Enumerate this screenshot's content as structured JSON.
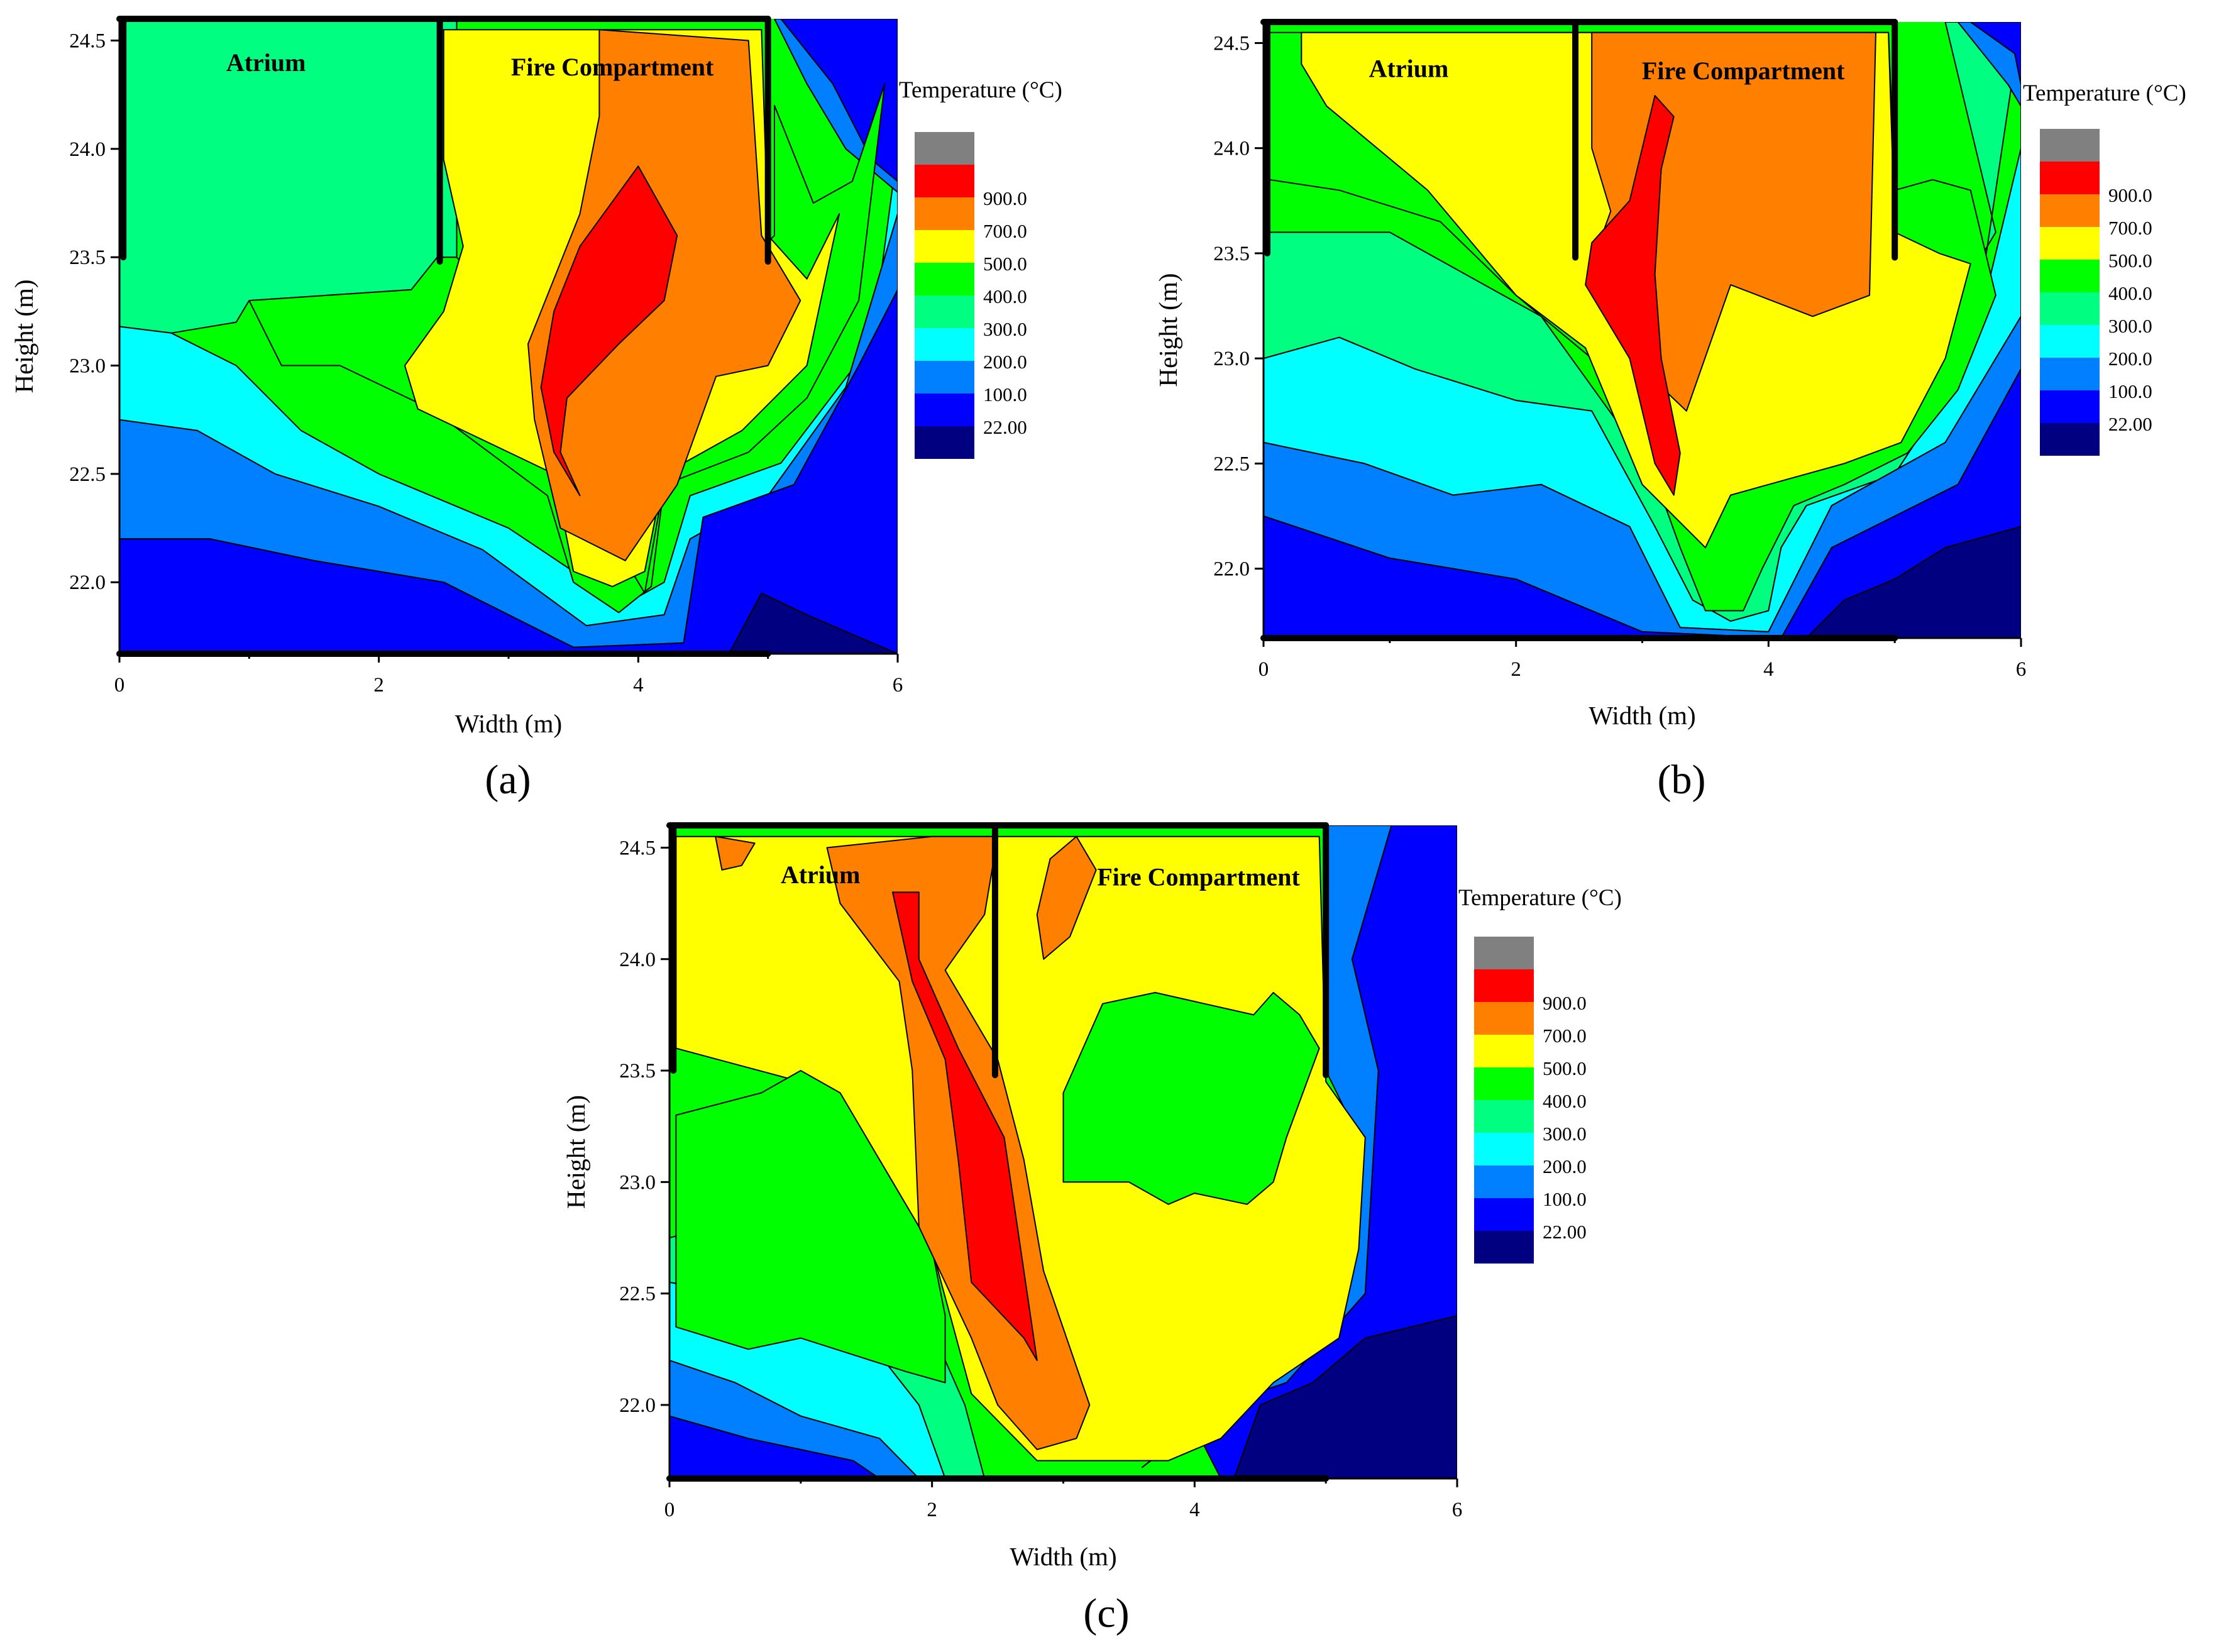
{
  "chart_data": [
    {
      "type": "heatmap",
      "panel_label": "(a)",
      "xlabel": "Width (m)",
      "ylabel": "Height (m)",
      "xlim": [
        0,
        6
      ],
      "ylim": [
        21.67,
        24.6
      ],
      "x_ticks": [
        0,
        2,
        4,
        6
      ],
      "y_ticks": [
        22.0,
        22.5,
        23.0,
        23.5,
        24.0,
        24.5
      ],
      "x_tick_labels": [
        "0",
        "2",
        "4",
        "6"
      ],
      "y_tick_labels": [
        "22.0",
        "22.5",
        "23.0",
        "23.5",
        "24.0",
        "24.5"
      ],
      "region_labels": [
        {
          "text": "Atrium",
          "x": 1.13,
          "y": 24.4
        },
        {
          "text": "Fire Compartment",
          "x": 3.8,
          "y": 24.38
        }
      ],
      "walls": [
        {
          "x": 0.03,
          "y_from": 23.5,
          "y_to": 24.6
        },
        {
          "x": 2.47,
          "y_from": 23.48,
          "y_to": 24.6
        },
        {
          "x": 5.0,
          "y_from": 23.48,
          "y_to": 24.6
        }
      ],
      "legend": {
        "title": "Temperature (°C)",
        "placement": "right"
      },
      "contours": [
        {
          "level": "green",
          "points": [
            [
              1.0,
              23.3
            ],
            [
              2.25,
              23.35
            ],
            [
              2.45,
              23.5
            ],
            [
              2.6,
              23.5
            ],
            [
              3.3,
              23.05
            ],
            [
              3.65,
              22.35
            ],
            [
              4.05,
              21.95
            ],
            [
              4.3,
              22.8
            ],
            [
              4.7,
              23.4
            ],
            [
              5.05,
              23.6
            ],
            [
              5.05,
              24.2
            ],
            [
              5.35,
              23.75
            ],
            [
              5.65,
              23.85
            ],
            [
              5.9,
              24.3
            ],
            [
              5.7,
              23.3
            ],
            [
              5.3,
              22.85
            ],
            [
              4.85,
              22.6
            ],
            [
              4.2,
              22.45
            ],
            [
              4.1,
              21.98
            ],
            [
              3.85,
              21.86
            ],
            [
              3.5,
              22.0
            ],
            [
              3.3,
              22.4
            ],
            [
              2.4,
              22.8
            ],
            [
              1.7,
              23.0
            ],
            [
              1.25,
              23.0
            ]
          ]
        },
        {
          "level": "yellow",
          "points": [
            [
              2.6,
              24.55
            ],
            [
              4.95,
              24.55
            ],
            [
              5.0,
              23.6
            ],
            [
              5.3,
              23.4
            ],
            [
              5.55,
              23.7
            ],
            [
              5.3,
              23.0
            ],
            [
              4.8,
              22.7
            ],
            [
              4.2,
              22.5
            ],
            [
              4.05,
              22.05
            ],
            [
              3.8,
              21.98
            ],
            [
              3.5,
              22.05
            ],
            [
              3.35,
              22.5
            ],
            [
              3.0,
              22.6
            ],
            [
              2.3,
              22.8
            ],
            [
              2.2,
              23.0
            ],
            [
              2.5,
              23.25
            ],
            [
              2.65,
              23.55
            ],
            [
              2.5,
              23.95
            ],
            [
              2.5,
              24.55
            ]
          ]
        },
        {
          "level": "orange",
          "points": [
            [
              3.7,
              24.55
            ],
            [
              4.85,
              24.5
            ],
            [
              4.95,
              23.6
            ],
            [
              5.25,
              23.3
            ],
            [
              5.0,
              23.0
            ],
            [
              4.6,
              22.95
            ],
            [
              4.3,
              22.45
            ],
            [
              3.9,
              22.1
            ],
            [
              3.4,
              22.25
            ],
            [
              3.2,
              22.75
            ],
            [
              3.15,
              23.1
            ],
            [
              3.55,
              23.7
            ],
            [
              3.7,
              24.15
            ]
          ]
        },
        {
          "level": "red",
          "points": [
            [
              4.0,
              23.92
            ],
            [
              4.3,
              23.6
            ],
            [
              4.2,
              23.3
            ],
            [
              3.85,
              23.1
            ],
            [
              3.45,
              22.85
            ],
            [
              3.4,
              22.6
            ],
            [
              3.55,
              22.4
            ],
            [
              3.35,
              22.6
            ],
            [
              3.25,
              22.9
            ],
            [
              3.35,
              23.25
            ],
            [
              3.55,
              23.55
            ]
          ]
        }
      ]
    },
    {
      "type": "heatmap",
      "panel_label": "(b)",
      "xlabel": "Width (m)",
      "ylabel": "Height (m)",
      "xlim": [
        0,
        6
      ],
      "ylim": [
        21.67,
        24.6
      ],
      "x_ticks": [
        0,
        2,
        4,
        6
      ],
      "y_ticks": [
        22.0,
        22.5,
        23.0,
        23.5,
        24.0,
        24.5
      ],
      "x_tick_labels": [
        "0",
        "2",
        "4",
        "6"
      ],
      "y_tick_labels": [
        "22.0",
        "22.5",
        "23.0",
        "23.5",
        "24.0",
        "24.5"
      ],
      "region_labels": [
        {
          "text": "Atrium",
          "x": 1.15,
          "y": 24.38
        },
        {
          "text": "Fire Compartment",
          "x": 3.8,
          "y": 24.37
        }
      ],
      "walls": [
        {
          "x": 0.03,
          "y_from": 23.5,
          "y_to": 24.6
        },
        {
          "x": 2.47,
          "y_from": 23.48,
          "y_to": 24.6
        },
        {
          "x": 5.0,
          "y_from": 23.48,
          "y_to": 24.6
        }
      ],
      "legend": {
        "title": "Temperature (°C)",
        "placement": "right"
      },
      "contours": [
        {
          "level": "green",
          "points": [
            [
              0.05,
              24.55
            ],
            [
              4.95,
              24.55
            ],
            [
              5.0,
              23.8
            ],
            [
              5.3,
              23.85
            ],
            [
              5.6,
              23.8
            ],
            [
              5.8,
              23.3
            ],
            [
              5.5,
              22.85
            ],
            [
              5.1,
              22.55
            ],
            [
              4.6,
              22.4
            ],
            [
              4.2,
              22.3
            ],
            [
              3.95,
              22.0
            ],
            [
              3.8,
              21.8
            ],
            [
              3.5,
              21.8
            ],
            [
              3.3,
              22.1
            ],
            [
              3.0,
              22.6
            ],
            [
              2.6,
              23.0
            ],
            [
              2.0,
              23.3
            ],
            [
              1.4,
              23.65
            ],
            [
              0.6,
              23.8
            ],
            [
              0.05,
              23.85
            ]
          ]
        },
        {
          "level": "yellow",
          "points": [
            [
              0.3,
              24.55
            ],
            [
              4.95,
              24.55
            ],
            [
              5.0,
              23.6
            ],
            [
              5.35,
              23.5
            ],
            [
              5.6,
              23.45
            ],
            [
              5.4,
              23.0
            ],
            [
              5.05,
              22.6
            ],
            [
              4.6,
              22.5
            ],
            [
              4.0,
              22.4
            ],
            [
              3.7,
              22.35
            ],
            [
              3.5,
              22.1
            ],
            [
              3.0,
              22.4
            ],
            [
              2.55,
              23.05
            ],
            [
              2.0,
              23.3
            ],
            [
              1.3,
              23.8
            ],
            [
              0.5,
              24.2
            ],
            [
              0.3,
              24.4
            ]
          ]
        },
        {
          "level": "orange",
          "points": [
            [
              2.6,
              24.55
            ],
            [
              4.85,
              24.55
            ],
            [
              4.8,
              23.3
            ],
            [
              4.35,
              23.2
            ],
            [
              3.7,
              23.35
            ],
            [
              3.35,
              22.75
            ],
            [
              3.0,
              22.95
            ],
            [
              2.75,
              23.35
            ],
            [
              2.6,
              23.45
            ],
            [
              2.75,
              23.7
            ],
            [
              2.6,
              24.0
            ]
          ]
        },
        {
          "level": "red",
          "points": [
            [
              3.1,
              24.25
            ],
            [
              3.25,
              24.15
            ],
            [
              3.15,
              23.9
            ],
            [
              3.1,
              23.4
            ],
            [
              3.15,
              23.0
            ],
            [
              3.3,
              22.55
            ],
            [
              3.25,
              22.35
            ],
            [
              3.1,
              22.5
            ],
            [
              2.9,
              23.0
            ],
            [
              2.55,
              23.35
            ],
            [
              2.6,
              23.55
            ],
            [
              2.9,
              23.75
            ]
          ]
        }
      ]
    },
    {
      "type": "heatmap",
      "panel_label": "(c)",
      "xlabel": "Width (m)",
      "ylabel": "Height (m)",
      "xlim": [
        0,
        6
      ],
      "ylim": [
        21.67,
        24.6
      ],
      "x_ticks": [
        0,
        2,
        4,
        6
      ],
      "y_ticks": [
        22.0,
        22.5,
        23.0,
        23.5,
        24.0,
        24.5
      ],
      "x_tick_labels": [
        "0",
        "2",
        "4",
        "6"
      ],
      "y_tick_labels": [
        "22.0",
        "22.5",
        "23.0",
        "23.5",
        "24.0",
        "24.5"
      ],
      "region_labels": [
        {
          "text": "Atrium",
          "x": 1.15,
          "y": 24.38
        },
        {
          "text": "Fire Compartment",
          "x": 4.03,
          "y": 24.37
        }
      ],
      "walls": [
        {
          "x": 0.03,
          "y_from": 23.5,
          "y_to": 24.6
        },
        {
          "x": 2.48,
          "y_from": 23.48,
          "y_to": 24.6
        },
        {
          "x": 5.0,
          "y_from": 23.48,
          "y_to": 24.6
        }
      ],
      "legend": {
        "title": "Temperature (°C)",
        "placement": "right"
      },
      "contours": [
        {
          "level": "yellow",
          "points": [
            [
              0.05,
              24.55
            ],
            [
              4.95,
              24.55
            ],
            [
              5.0,
              23.45
            ],
            [
              5.3,
              23.2
            ],
            [
              5.25,
              22.7
            ],
            [
              5.1,
              22.3
            ],
            [
              4.6,
              22.1
            ],
            [
              4.2,
              21.85
            ],
            [
              3.8,
              21.75
            ],
            [
              3.2,
              21.75
            ],
            [
              2.8,
              21.75
            ],
            [
              2.55,
              21.9
            ],
            [
              2.3,
              22.05
            ],
            [
              2.0,
              22.7
            ],
            [
              1.6,
              23.1
            ],
            [
              1.0,
              23.45
            ],
            [
              0.05,
              23.6
            ]
          ]
        },
        {
          "level": "green",
          "points": [
            [
              3.0,
              23.4
            ],
            [
              3.3,
              23.8
            ],
            [
              3.7,
              23.85
            ],
            [
              4.45,
              23.75
            ],
            [
              4.6,
              23.85
            ],
            [
              4.8,
              23.75
            ],
            [
              4.95,
              23.6
            ],
            [
              4.7,
              23.2
            ],
            [
              4.6,
              23.0
            ],
            [
              4.4,
              22.9
            ],
            [
              4.0,
              22.95
            ],
            [
              3.8,
              22.9
            ],
            [
              3.5,
              23.0
            ],
            [
              3.0,
              23.0
            ]
          ]
        },
        {
          "level": "green",
          "points": [
            [
              0.05,
              23.3
            ],
            [
              0.7,
              23.4
            ],
            [
              1.0,
              23.5
            ],
            [
              1.3,
              23.4
            ],
            [
              1.6,
              23.1
            ],
            [
              2.0,
              22.7
            ],
            [
              2.1,
              22.4
            ],
            [
              2.1,
              22.1
            ],
            [
              1.8,
              22.15
            ],
            [
              1.0,
              22.3
            ],
            [
              0.6,
              22.25
            ],
            [
              0.05,
              22.35
            ]
          ]
        },
        {
          "level": "orange",
          "points": [
            [
              1.2,
              24.5
            ],
            [
              2.0,
              24.55
            ],
            [
              2.5,
              24.55
            ],
            [
              2.4,
              24.2
            ],
            [
              2.1,
              23.95
            ],
            [
              2.5,
              23.55
            ],
            [
              2.7,
              23.1
            ],
            [
              2.85,
              22.6
            ],
            [
              3.2,
              22.0
            ],
            [
              3.1,
              21.85
            ],
            [
              2.8,
              21.8
            ],
            [
              2.5,
              22.0
            ],
            [
              2.3,
              22.3
            ],
            [
              1.9,
              22.8
            ],
            [
              1.85,
              23.5
            ],
            [
              1.75,
              23.9
            ],
            [
              1.3,
              24.25
            ]
          ]
        },
        {
          "level": "orange",
          "points": [
            [
              2.9,
              24.45
            ],
            [
              3.1,
              24.55
            ],
            [
              3.25,
              24.4
            ],
            [
              3.05,
              24.1
            ],
            [
              2.85,
              24.0
            ],
            [
              2.8,
              24.2
            ]
          ]
        },
        {
          "level": "orange",
          "points": [
            [
              0.35,
              24.55
            ],
            [
              0.65,
              24.52
            ],
            [
              0.55,
              24.42
            ],
            [
              0.4,
              24.4
            ]
          ]
        },
        {
          "level": "red",
          "points": [
            [
              1.7,
              24.3
            ],
            [
              1.9,
              24.3
            ],
            [
              1.9,
              24.0
            ],
            [
              2.2,
              23.6
            ],
            [
              2.55,
              23.2
            ],
            [
              2.7,
              22.6
            ],
            [
              2.8,
              22.2
            ],
            [
              2.7,
              22.3
            ],
            [
              2.3,
              22.55
            ],
            [
              2.2,
              23.1
            ],
            [
              2.1,
              23.55
            ],
            [
              1.85,
              23.9
            ]
          ]
        }
      ]
    }
  ],
  "legend_levels": [
    {
      "label": "",
      "color": "#808080"
    },
    {
      "label": "900.0",
      "color": "#ff0000"
    },
    {
      "label": "700.0",
      "color": "#ff8000"
    },
    {
      "label": "500.0",
      "color": "#ffff00"
    },
    {
      "label": "400.0",
      "color": "#00ff00"
    },
    {
      "label": "300.0",
      "color": "#00ff80"
    },
    {
      "label": "200.0",
      "color": "#00ffff"
    },
    {
      "label": "100.0",
      "color": "#0080ff"
    },
    {
      "label": "22.00",
      "color": "#0000ff"
    },
    {
      "label": "",
      "color": "#000080"
    }
  ]
}
